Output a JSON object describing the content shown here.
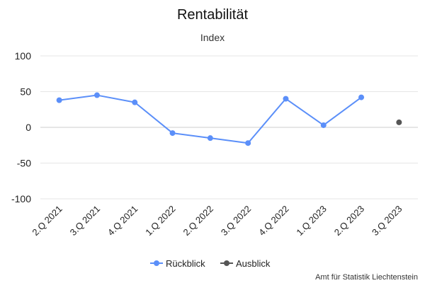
{
  "chart_data": {
    "type": "line",
    "title": "Rentabilität",
    "subtitle": "Index",
    "categories": [
      "2.Q 2021",
      "3.Q 2021",
      "4.Q 2021",
      "1.Q 2022",
      "2.Q 2022",
      "3.Q 2022",
      "4.Q 2022",
      "1.Q 2023",
      "2.Q 2023",
      "3.Q 2023"
    ],
    "ylim": [
      -100,
      100
    ],
    "yticks": [
      100,
      50,
      0,
      -50,
      -100
    ],
    "grid": true,
    "legend_position": "bottom-center",
    "series": [
      {
        "name": "Rückblick",
        "color": "#5b8ff9",
        "values": [
          38,
          45,
          35,
          -8,
          -15,
          -22,
          40,
          3,
          42,
          null
        ]
      },
      {
        "name": "Ausblick",
        "color": "#555555",
        "values": [
          null,
          null,
          null,
          null,
          null,
          null,
          null,
          null,
          null,
          7
        ]
      }
    ],
    "credit": "Amt für Statistik Liechtenstein"
  }
}
